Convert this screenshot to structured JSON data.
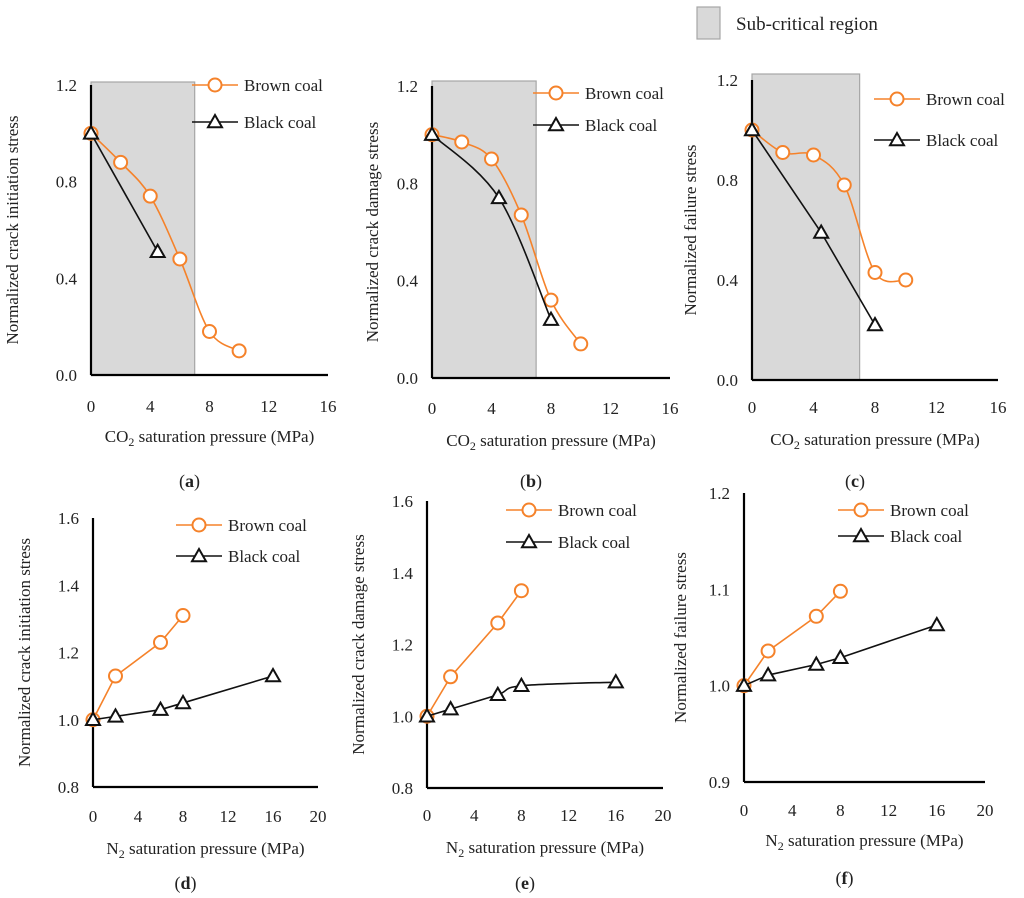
{
  "figure_legend": {
    "label": "Sub-critical region",
    "fill": "#D9D9D9",
    "stroke": "#A6A6A6"
  },
  "colors": {
    "brown": "#F5822A",
    "black": "#111111"
  },
  "chart_data": [
    {
      "id": "a",
      "type": "line",
      "caption_letter": "a",
      "xlabel_prefix": "CO",
      "xlabel_sub": "2",
      "xlabel_rest": " saturation pressure (MPa)",
      "ylabel": "Normalized crack initiation stress",
      "xlim": [
        0,
        16
      ],
      "xticks": [
        "0",
        "4",
        "8",
        "12",
        "16"
      ],
      "xtick_values": [
        0,
        4,
        8,
        12,
        16
      ],
      "ylim": [
        0,
        1.2
      ],
      "yticks": [
        "0.0",
        "0.4",
        "0.8",
        "1.2"
      ],
      "ytick_values": [
        0,
        0.4,
        0.8,
        1.2
      ],
      "shaded_region": [
        0,
        7
      ],
      "legend": [
        "Brown coal",
        "Black coal"
      ],
      "series": [
        {
          "name": "Brown coal",
          "marker": "circle",
          "smooth": true,
          "x": [
            0,
            2,
            4,
            6,
            8,
            10
          ],
          "y": [
            1.0,
            0.88,
            0.74,
            0.48,
            0.18,
            0.1
          ]
        },
        {
          "name": "Black coal",
          "marker": "triangle",
          "smooth": false,
          "x": [
            0,
            4.5
          ],
          "y": [
            1.0,
            0.51
          ]
        }
      ]
    },
    {
      "id": "b",
      "type": "line",
      "caption_letter": "b",
      "xlabel_prefix": "CO",
      "xlabel_sub": "2",
      "xlabel_rest": " saturation pressure (MPa)",
      "ylabel": "Normalized crack damage stress",
      "xlim": [
        0,
        16
      ],
      "xticks": [
        "0",
        "4",
        "8",
        "12",
        "16"
      ],
      "xtick_values": [
        0,
        4,
        8,
        12,
        16
      ],
      "ylim": [
        0,
        1.2
      ],
      "yticks": [
        "0.0",
        "0.4",
        "0.8",
        "1.2"
      ],
      "ytick_values": [
        0,
        0.4,
        0.8,
        1.2
      ],
      "shaded_region": [
        0,
        7
      ],
      "legend": [
        "Brown coal",
        "Black coal"
      ],
      "series": [
        {
          "name": "Brown coal",
          "marker": "circle",
          "smooth": true,
          "x": [
            0,
            2,
            4,
            6,
            8,
            10
          ],
          "y": [
            1.0,
            0.97,
            0.9,
            0.67,
            0.32,
            0.14
          ]
        },
        {
          "name": "Black coal",
          "marker": "triangle",
          "smooth": true,
          "x": [
            0,
            4.5,
            8
          ],
          "y": [
            1.0,
            0.74,
            0.24
          ]
        }
      ]
    },
    {
      "id": "c",
      "type": "line",
      "caption_letter": "c",
      "xlabel_prefix": "CO",
      "xlabel_sub": "2",
      "xlabel_rest": " saturation pressure (MPa)",
      "ylabel": "Normalized failure stress",
      "xlim": [
        0,
        16
      ],
      "xticks": [
        "0",
        "4",
        "8",
        "12",
        "16"
      ],
      "xtick_values": [
        0,
        4,
        8,
        12,
        16
      ],
      "ylim": [
        0,
        1.2
      ],
      "yticks": [
        "0.0",
        "0.4",
        "0.8",
        "1.2"
      ],
      "ytick_values": [
        0,
        0.4,
        0.8,
        1.2
      ],
      "shaded_region": [
        0,
        7
      ],
      "legend": [
        "Brown coal",
        "Black coal"
      ],
      "series": [
        {
          "name": "Brown coal",
          "marker": "circle",
          "smooth": true,
          "x": [
            0,
            2,
            4,
            6,
            8,
            10
          ],
          "y": [
            1.0,
            0.91,
            0.9,
            0.78,
            0.43,
            0.4
          ]
        },
        {
          "name": "Black coal",
          "marker": "triangle",
          "smooth": false,
          "x": [
            0,
            4.5,
            8
          ],
          "y": [
            1.0,
            0.59,
            0.22
          ]
        }
      ]
    },
    {
      "id": "d",
      "type": "line",
      "caption_letter": "d",
      "xlabel_prefix": "N",
      "xlabel_sub": "2",
      "xlabel_rest": " saturation pressure (MPa)",
      "ylabel": "Normalized crack initiation stress",
      "xlim": [
        0,
        20
      ],
      "xticks": [
        "0",
        "4",
        "8",
        "12",
        "16",
        "20"
      ],
      "xtick_values": [
        0,
        4,
        8,
        12,
        16,
        20
      ],
      "ylim": [
        0.8,
        1.6
      ],
      "yticks": [
        "0.8",
        "1.0",
        "1.2",
        "1.4",
        "1.6"
      ],
      "ytick_values": [
        0.8,
        1.0,
        1.2,
        1.4,
        1.6
      ],
      "shaded_region": null,
      "legend": [
        "Brown coal",
        "Black coal"
      ],
      "series": [
        {
          "name": "Brown coal",
          "marker": "circle",
          "smooth": false,
          "x": [
            0,
            2,
            6,
            8
          ],
          "y": [
            1.0,
            1.13,
            1.23,
            1.31
          ]
        },
        {
          "name": "Black coal",
          "marker": "triangle",
          "smooth": false,
          "x": [
            0,
            2,
            6,
            8,
            16
          ],
          "y": [
            1.0,
            1.01,
            1.03,
            1.05,
            1.13
          ]
        }
      ]
    },
    {
      "id": "e",
      "type": "line",
      "caption_letter": "e",
      "xlabel_prefix": "N",
      "xlabel_sub": "2",
      "xlabel_rest": " saturation pressure (MPa)",
      "ylabel": "Normalized crack damage stress",
      "xlim": [
        0,
        20
      ],
      "xticks": [
        "0",
        "4",
        "8",
        "12",
        "16",
        "20"
      ],
      "xtick_values": [
        0,
        4,
        8,
        12,
        16,
        20
      ],
      "ylim": [
        0.8,
        1.6
      ],
      "yticks": [
        "0.8",
        "1.0",
        "1.2",
        "1.4",
        "1.6"
      ],
      "ytick_values": [
        0.8,
        1.0,
        1.2,
        1.4,
        1.6
      ],
      "shaded_region": null,
      "legend": [
        "Brown coal",
        "Black coal"
      ],
      "series": [
        {
          "name": "Brown coal",
          "marker": "circle",
          "smooth": false,
          "x": [
            0,
            2,
            6,
            8
          ],
          "y": [
            1.0,
            1.11,
            1.26,
            1.35
          ]
        },
        {
          "name": "Black coal",
          "marker": "triangle",
          "smooth": true,
          "x": [
            0,
            2,
            6,
            8,
            16
          ],
          "y": [
            1.0,
            1.02,
            1.06,
            1.085,
            1.095
          ]
        }
      ]
    },
    {
      "id": "f",
      "type": "line",
      "caption_letter": "f",
      "xlabel_prefix": "N",
      "xlabel_sub": "2",
      "xlabel_rest": " saturation pressure (MPa)",
      "ylabel": "Normalized failure stress",
      "xlim": [
        0,
        20
      ],
      "xticks": [
        "0",
        "4",
        "8",
        "12",
        "16",
        "20"
      ],
      "xtick_values": [
        0,
        4,
        8,
        12,
        16,
        20
      ],
      "ylim": [
        0.9,
        1.2
      ],
      "yticks": [
        "0.9",
        "1.0",
        "1.1",
        "1.2"
      ],
      "ytick_values": [
        0.9,
        1.0,
        1.1,
        1.2
      ],
      "shaded_region": null,
      "legend": [
        "Brown coal",
        "Black coal"
      ],
      "series": [
        {
          "name": "Brown coal",
          "marker": "circle",
          "smooth": false,
          "x": [
            0,
            2,
            6,
            8
          ],
          "y": [
            1.0,
            1.036,
            1.072,
            1.098
          ]
        },
        {
          "name": "Black coal",
          "marker": "triangle",
          "smooth": false,
          "x": [
            0,
            2,
            6,
            8,
            16
          ],
          "y": [
            1.0,
            1.011,
            1.022,
            1.029,
            1.063
          ]
        }
      ]
    }
  ]
}
